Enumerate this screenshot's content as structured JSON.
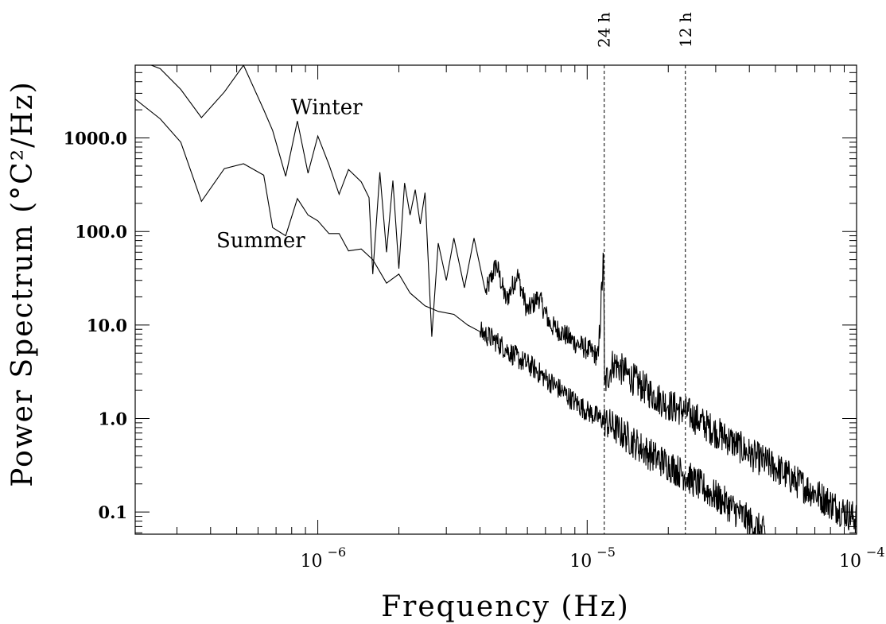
{
  "chart_data": {
    "type": "line",
    "xlabel": "Frequency (Hz)",
    "ylabel": "Power Spectrum (°C²/Hz)",
    "xscale": "log",
    "yscale": "log",
    "xlim": [
      2.1e-07,
      0.0001
    ],
    "ylim": [
      0.058,
      6000
    ],
    "grid": false,
    "x_ticks": [
      {
        "value": 1e-06,
        "base": "10",
        "exp": "−6"
      },
      {
        "value": 1e-05,
        "base": "10",
        "exp": "−5"
      },
      {
        "value": 0.0001,
        "base": "10",
        "exp": "−4"
      }
    ],
    "y_ticks": [
      {
        "value": 0.1,
        "label": "0.1"
      },
      {
        "value": 1,
        "label": "1.0"
      },
      {
        "value": 10,
        "label": "10.0"
      },
      {
        "value": 100,
        "label": "100.0"
      },
      {
        "value": 1000,
        "label": "1000.0"
      }
    ],
    "reference_lines": [
      {
        "x": 1.157e-05,
        "label": "24 h"
      },
      {
        "x": 2.315e-05,
        "label": "12 h"
      }
    ],
    "series": [
      {
        "name": "Winter",
        "label_at": [
          8.4e-07,
          1800
        ],
        "points": [
          [
            2.1e-07,
            7000
          ],
          [
            2.6e-07,
            5500
          ],
          [
            3.1e-07,
            3300
          ],
          [
            3.7e-07,
            1650
          ],
          [
            4.5e-07,
            3100
          ],
          [
            5.3e-07,
            6000
          ],
          [
            6.3e-07,
            2000
          ],
          [
            6.8e-07,
            1200
          ],
          [
            7.6e-07,
            390
          ],
          [
            8.4e-07,
            1520
          ],
          [
            9.2e-07,
            420
          ],
          [
            1e-06,
            1050
          ],
          [
            1.1e-06,
            520
          ],
          [
            1.2e-06,
            250
          ],
          [
            1.3e-06,
            460
          ],
          [
            1.45e-06,
            340
          ],
          [
            1.55e-06,
            230
          ],
          [
            1.6e-06,
            35
          ],
          [
            1.7e-06,
            430
          ],
          [
            1.8e-06,
            60
          ],
          [
            1.9e-06,
            350
          ],
          [
            2e-06,
            40
          ],
          [
            2.1e-06,
            330
          ],
          [
            2.2e-06,
            150
          ],
          [
            2.3e-06,
            280
          ],
          [
            2.4e-06,
            120
          ],
          [
            2.5e-06,
            260
          ],
          [
            2.65e-06,
            7.5
          ],
          [
            2.8e-06,
            75
          ],
          [
            3e-06,
            30
          ],
          [
            3.2e-06,
            85
          ],
          [
            3.5e-06,
            25
          ],
          [
            3.8e-06,
            85
          ],
          [
            4.2e-06,
            22
          ],
          [
            4.6e-06,
            45
          ],
          [
            5e-06,
            18
          ],
          [
            5.5e-06,
            35
          ],
          [
            6e-06,
            14
          ],
          [
            6.6e-06,
            20
          ],
          [
            7.3e-06,
            10
          ],
          [
            8e-06,
            8.5
          ],
          [
            9e-06,
            6.5
          ],
          [
            1e-05,
            5.5
          ],
          [
            1.1e-05,
            4.6
          ],
          [
            1.15e-05,
            55
          ],
          [
            1.16e-05,
            2.3
          ],
          [
            1.25e-05,
            4.0
          ],
          [
            1.4e-05,
            3.0
          ],
          [
            1.6e-05,
            2.2
          ],
          [
            1.8e-05,
            1.7
          ],
          [
            2e-05,
            1.4
          ],
          [
            2.3e-05,
            1.2
          ],
          [
            2.6e-05,
            0.95
          ],
          [
            3e-05,
            0.72
          ],
          [
            3.5e-05,
            0.55
          ],
          [
            4e-05,
            0.42
          ],
          [
            5e-05,
            0.3
          ],
          [
            6e-05,
            0.21
          ],
          [
            7e-05,
            0.16
          ],
          [
            8.5e-05,
            0.11
          ],
          [
            0.0001,
            0.085
          ]
        ]
      },
      {
        "name": "Summer",
        "label_at": [
          4.2e-07,
          68
        ],
        "points": [
          [
            2.1e-07,
            2600
          ],
          [
            2.6e-07,
            1600
          ],
          [
            3.1e-07,
            900
          ],
          [
            3.7e-07,
            210
          ],
          [
            4.5e-07,
            470
          ],
          [
            5.3e-07,
            530
          ],
          [
            6.3e-07,
            400
          ],
          [
            6.8e-07,
            110
          ],
          [
            7.6e-07,
            90
          ],
          [
            8.4e-07,
            225
          ],
          [
            9.2e-07,
            150
          ],
          [
            1e-06,
            130
          ],
          [
            1.1e-06,
            95
          ],
          [
            1.2e-06,
            95
          ],
          [
            1.3e-06,
            62
          ],
          [
            1.45e-06,
            65
          ],
          [
            1.6e-06,
            50
          ],
          [
            1.8e-06,
            28
          ],
          [
            2e-06,
            35
          ],
          [
            2.2e-06,
            22
          ],
          [
            2.5e-06,
            16
          ],
          [
            2.8e-06,
            14
          ],
          [
            3.2e-06,
            13
          ],
          [
            3.6e-06,
            10
          ],
          [
            4e-06,
            8.5
          ],
          [
            4.5e-06,
            7.0
          ],
          [
            5e-06,
            5.5
          ],
          [
            5.6e-06,
            4.3
          ],
          [
            6.3e-06,
            3.5
          ],
          [
            7e-06,
            2.7
          ],
          [
            8e-06,
            2.0
          ],
          [
            9e-06,
            1.5
          ],
          [
            1e-05,
            1.2
          ],
          [
            1.15e-05,
            0.95
          ],
          [
            1.3e-05,
            0.75
          ],
          [
            1.5e-05,
            0.55
          ],
          [
            1.7e-05,
            0.42
          ],
          [
            2e-05,
            0.32
          ],
          [
            2.3e-05,
            0.25
          ],
          [
            2.7e-05,
            0.18
          ],
          [
            3.2e-05,
            0.13
          ],
          [
            3.7e-05,
            0.095
          ],
          [
            4.2e-05,
            0.07
          ],
          [
            4.6e-05,
            0.058
          ]
        ]
      }
    ]
  }
}
